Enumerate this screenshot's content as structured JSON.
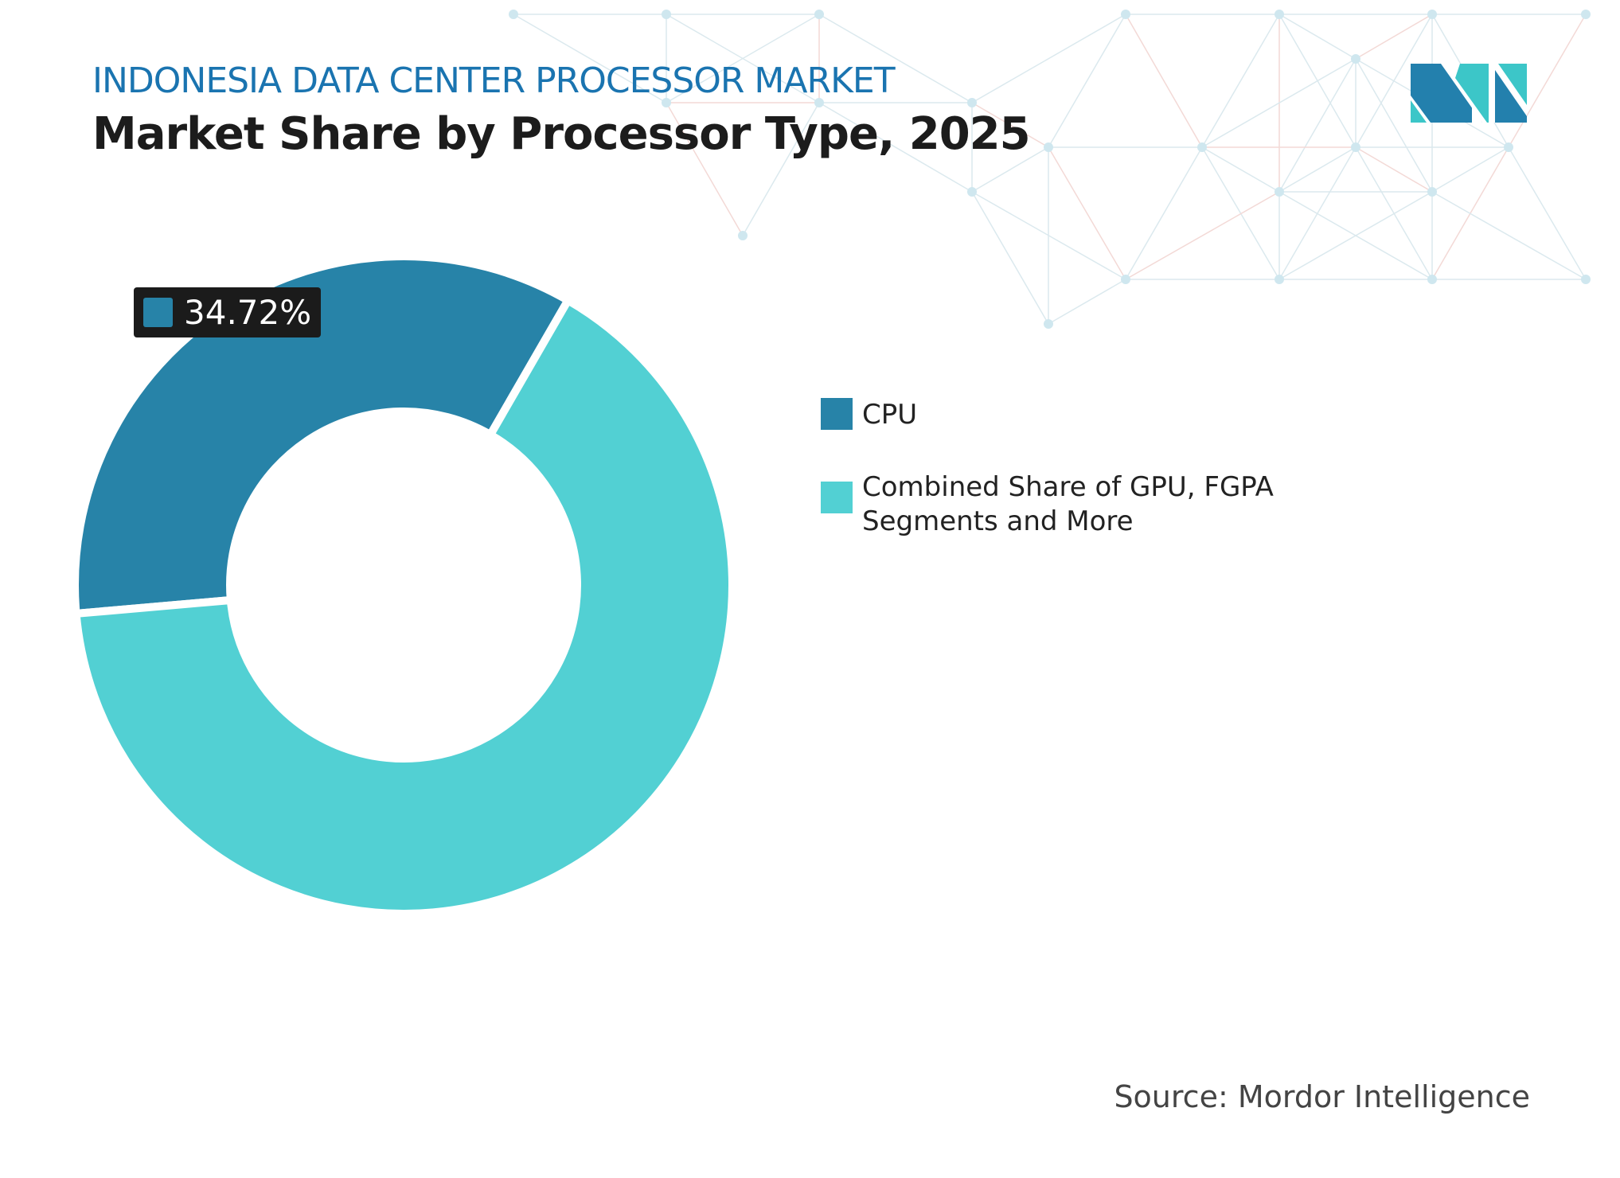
{
  "header": {
    "subtitle": "INDONESIA DATA CENTER PROCESSOR MARKET",
    "title": "Market Share by Processor Type, 2025"
  },
  "chart_data": {
    "type": "donut",
    "title": "Market Share by Processor Type, 2025",
    "categories": [
      "CPU",
      "Combined Share of GPU, FGPA Segments and More"
    ],
    "values": [
      34.72,
      65.28
    ],
    "colors": [
      "#2783a8",
      "#52d0d3"
    ],
    "data_labels": [
      {
        "category": "CPU",
        "text": "34.72%"
      }
    ],
    "legend_position": "right"
  },
  "source": "Source: Mordor Intelligence",
  "logo": {
    "text": "MI",
    "colors": [
      "#2380ad",
      "#3cc6c8"
    ]
  }
}
